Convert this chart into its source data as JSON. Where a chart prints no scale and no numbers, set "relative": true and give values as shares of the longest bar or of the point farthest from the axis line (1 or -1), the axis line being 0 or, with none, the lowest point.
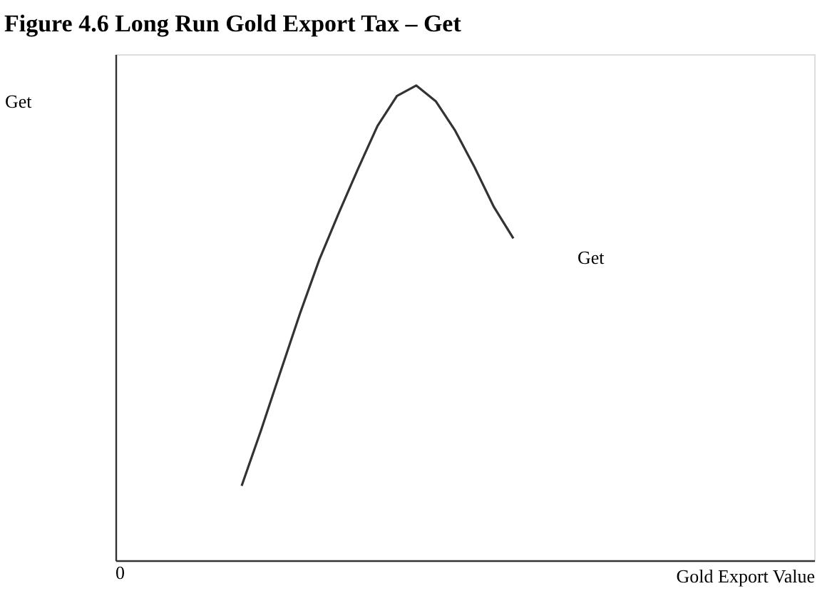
{
  "chart_data": {
    "type": "line",
    "title": "Figure 4.6 Long Run Gold Export Tax – Get",
    "xlabel": "Gold Export Value",
    "ylabel": "Get",
    "relative": true,
    "annotations": [
      "0"
    ],
    "legend": false,
    "marker": "none",
    "line_style": "solid",
    "categories": [
      null,
      null,
      null,
      null,
      null,
      null,
      null,
      null,
      null,
      null,
      null,
      null,
      null,
      null,
      null,
      null,
      null,
      null,
      null,
      null,
      null,
      null,
      null,
      null,
      null,
      null,
      null,
      null,
      null,
      null,
      null,
      null,
      null,
      null,
      null,
      null
    ],
    "series": [
      {
        "name": "Get",
        "color": "#333333",
        "values": [
          null,
          null,
          null,
          null,
          null,
          null,
          0.157,
          0.274,
          0.397,
          0.519,
          0.633,
          0.731,
          0.825,
          0.915,
          0.978,
          1.0,
          0.967,
          0.905,
          0.828,
          0.744,
          0.678,
          null,
          null,
          null,
          null,
          null,
          null,
          null,
          null,
          null,
          null,
          null,
          null,
          null,
          null,
          null
        ]
      }
    ]
  }
}
